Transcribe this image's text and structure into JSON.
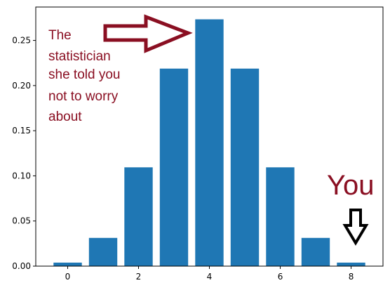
{
  "chart_data": {
    "type": "bar",
    "categories": [
      0,
      1,
      2,
      3,
      4,
      5,
      6,
      7,
      8
    ],
    "values": [
      0.0039,
      0.0313,
      0.1094,
      0.2188,
      0.2734,
      0.2188,
      0.1094,
      0.0313,
      0.0039
    ],
    "xlabel": "",
    "ylabel": "",
    "xlim": [
      -0.9,
      8.9
    ],
    "ylim": [
      0,
      0.287
    ],
    "x_ticks": [
      "0",
      "2",
      "4",
      "6",
      "8"
    ],
    "y_ticks": [
      "0.00",
      "0.05",
      "0.10",
      "0.15",
      "0.20",
      "0.25"
    ],
    "grid": false,
    "bar_color": "#1f77b4",
    "annotations": {
      "statistician_lines": [
        "The",
        "statistician",
        "she told you",
        "not to worry",
        "about"
      ],
      "you_label": "You",
      "annotation_color": "#8a0f22"
    }
  }
}
